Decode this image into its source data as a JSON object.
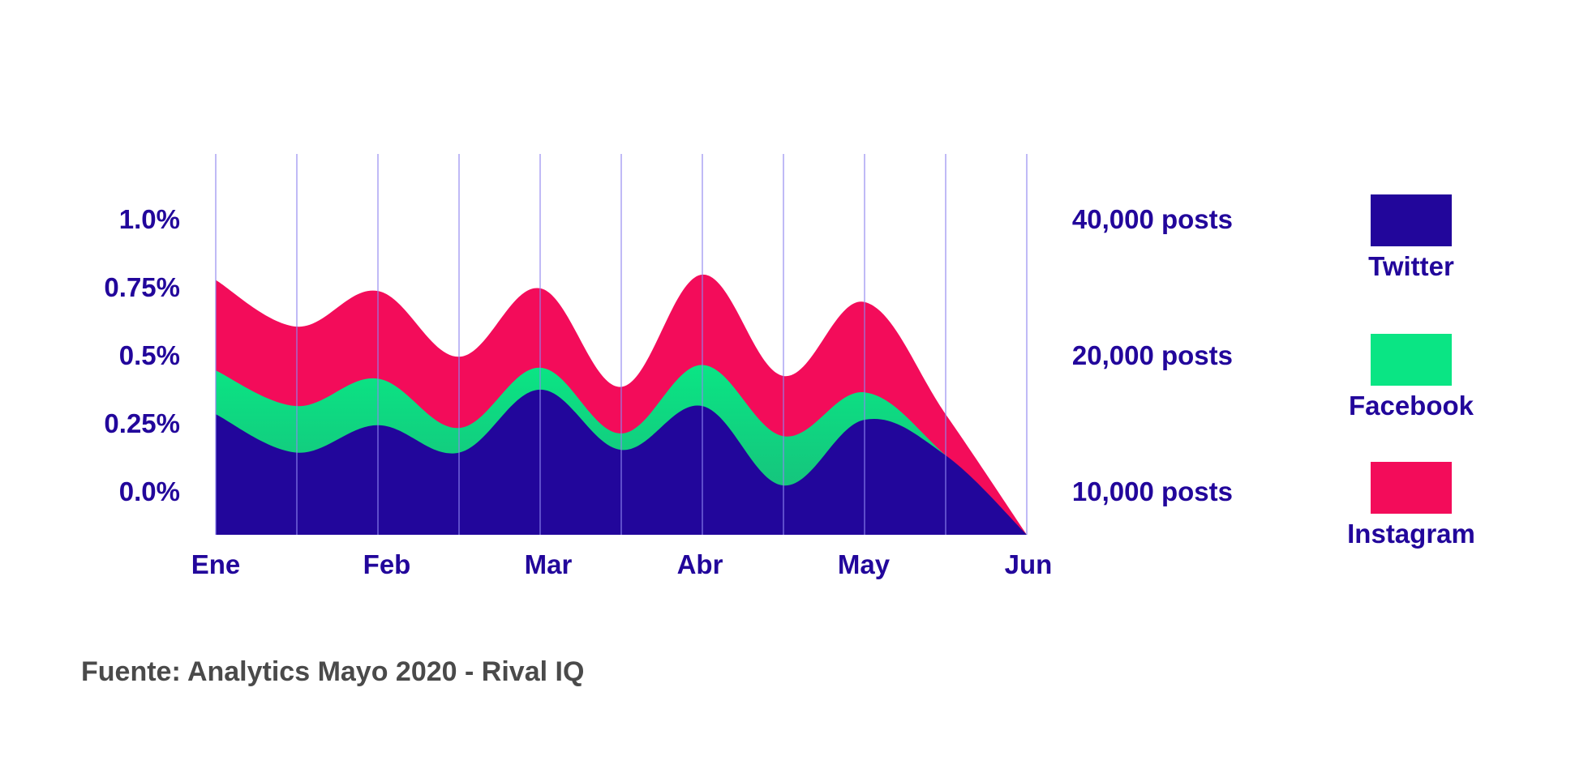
{
  "chart_data": {
    "type": "area",
    "stacked": true,
    "x": [
      0,
      0.5,
      1,
      1.5,
      2,
      2.5,
      3,
      3.5,
      4,
      4.5,
      5
    ],
    "x_tick_labels": [
      "Ene",
      "Feb",
      "Mar",
      "Abr",
      "May",
      "Jun"
    ],
    "y_left_tick_labels": [
      "1.0%",
      "0.75%",
      "0.5%",
      "0.25%",
      "0.0%"
    ],
    "y_right_tick_labels": [
      "40,000 posts",
      "20,000 posts",
      "10,000 posts"
    ],
    "series": [
      {
        "name": "Twitter",
        "color": "#22069b",
        "values": [
          0.44,
          0.3,
          0.4,
          0.3,
          0.53,
          0.31,
          0.47,
          0.18,
          0.42,
          0.29,
          0.0
        ]
      },
      {
        "name": "Facebook",
        "color": "#0ae584",
        "values": [
          0.16,
          0.17,
          0.17,
          0.09,
          0.08,
          0.06,
          0.15,
          0.18,
          0.1,
          0.0,
          0.0
        ]
      },
      {
        "name": "Instagram",
        "color": "#f30c5a",
        "values": [
          0.33,
          0.29,
          0.32,
          0.26,
          0.29,
          0.17,
          0.33,
          0.22,
          0.33,
          0.15,
          0.0
        ]
      }
    ],
    "grid": true,
    "legend_position": "right"
  },
  "source": "Fuente: Analytics Mayo 2020 - Rival IQ"
}
